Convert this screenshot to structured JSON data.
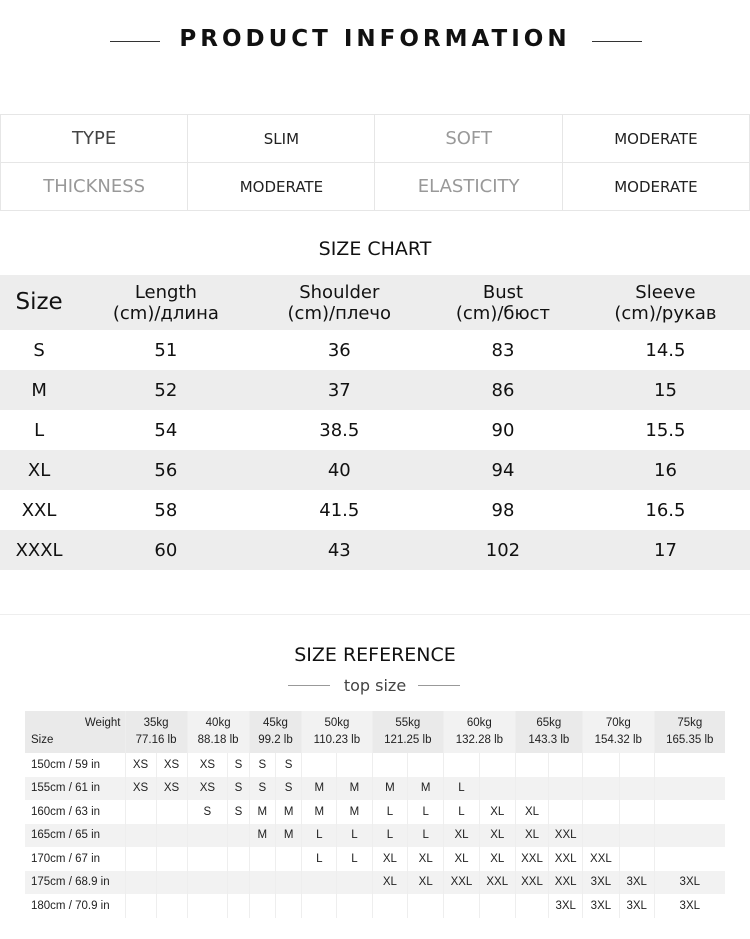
{
  "header": {
    "title": "PRODUCT INFORMATION"
  },
  "info": [
    [
      "TYPE",
      "SLIM",
      "SOFT",
      "MODERATE"
    ],
    [
      "THICKNESS",
      "MODERATE",
      "ELASTICITY",
      "MODERATE"
    ]
  ],
  "size_chart": {
    "title": "SIZE CHART",
    "headers": [
      [
        "Size"
      ],
      [
        "Length",
        "(cm)/длина"
      ],
      [
        "Shoulder",
        "(cm)/плечо"
      ],
      [
        "Bust",
        "(cm)/бюст"
      ],
      [
        "Sleeve",
        "(cm)/рукав"
      ]
    ],
    "rows": [
      [
        "S",
        "51",
        "36",
        "83",
        "14.5"
      ],
      [
        "M",
        "52",
        "37",
        "86",
        "15"
      ],
      [
        "L",
        "54",
        "38.5",
        "90",
        "15.5"
      ],
      [
        "XL",
        "56",
        "40",
        "94",
        "16"
      ],
      [
        "XXL",
        "58",
        "41.5",
        "98",
        "16.5"
      ],
      [
        "XXXL",
        "60",
        "43",
        "102",
        "17"
      ]
    ]
  },
  "size_reference": {
    "title": "SIZE REFERENCE",
    "subtitle": "top size",
    "weight_label": "Weight",
    "size_label": "Size",
    "weights": [
      [
        "35kg",
        "77.16 lb"
      ],
      [
        "40kg",
        "88.18 lb"
      ],
      [
        "45kg",
        "99.2 lb"
      ],
      [
        "50kg",
        "110.23 lb"
      ],
      [
        "55kg",
        "121.25 lb"
      ],
      [
        "60kg",
        "132.28 lb"
      ],
      [
        "65kg",
        "143.3 lb"
      ],
      [
        "70kg",
        "154.32 lb"
      ],
      [
        "75kg",
        "165.35 lb"
      ]
    ],
    "rows": [
      {
        "height": "150cm  /  59 in",
        "cells": [
          "XS",
          "XS",
          "XS",
          "S",
          "S",
          "S",
          "",
          "",
          "",
          "",
          "",
          "",
          "",
          "",
          "",
          "",
          ""
        ]
      },
      {
        "height": "155cm  /  61 in",
        "cells": [
          "XS",
          "XS",
          "XS",
          "S",
          "S",
          "S",
          "M",
          "M",
          "M",
          "M",
          "L",
          "",
          "",
          "",
          "",
          "",
          ""
        ]
      },
      {
        "height": "160cm  /  63 in",
        "cells": [
          "",
          "",
          "S",
          "S",
          "M",
          "M",
          "M",
          "M",
          "L",
          "L",
          "L",
          "XL",
          "XL",
          "",
          "",
          "",
          ""
        ]
      },
      {
        "height": "165cm  /  65 in",
        "cells": [
          "",
          "",
          "",
          "",
          "M",
          "M",
          "L",
          "L",
          "L",
          "L",
          "XL",
          "XL",
          "XL",
          "XXL",
          "",
          "",
          ""
        ]
      },
      {
        "height": "170cm  /  67 in",
        "cells": [
          "",
          "",
          "",
          "",
          "",
          "",
          "L",
          "L",
          "XL",
          "XL",
          "XL",
          "XL",
          "XXL",
          "XXL",
          "XXL",
          "",
          ""
        ]
      },
      {
        "height": "175cm  /  68.9 in",
        "cells": [
          "",
          "",
          "",
          "",
          "",
          "",
          "",
          "",
          "XL",
          "XL",
          "XXL",
          "XXL",
          "XXL",
          "XXL",
          "3XL",
          "3XL",
          "3XL"
        ]
      },
      {
        "height": "180cm  /  70.9 in",
        "cells": [
          "",
          "",
          "",
          "",
          "",
          "",
          "",
          "",
          "",
          "",
          "",
          "",
          "",
          "3XL",
          "3XL",
          "3XL",
          "3XL"
        ]
      }
    ]
  }
}
